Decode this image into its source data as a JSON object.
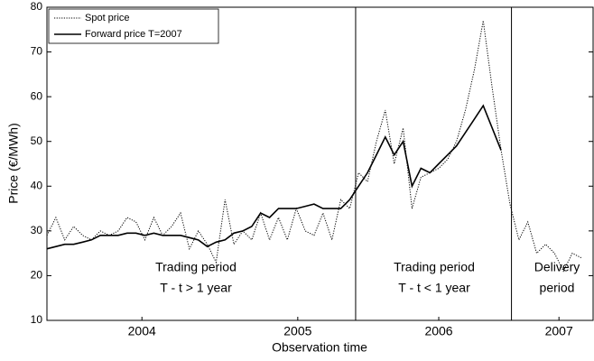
{
  "chart_data": {
    "type": "line",
    "xlabel": "Observation time",
    "ylabel": "Price (€/MWh)",
    "xlim": [
      2003.86,
      2007.54
    ],
    "ylim": [
      10,
      80
    ],
    "yticks": [
      10,
      20,
      30,
      40,
      50,
      60,
      70,
      80
    ],
    "xticks": [
      {
        "value": 2004.5,
        "label": "2004"
      },
      {
        "value": 2005.55,
        "label": "2005"
      },
      {
        "value": 2006.5,
        "label": "2006"
      },
      {
        "value": 2007.31,
        "label": "2007"
      }
    ],
    "legend": "upper left",
    "dividers": [
      2005.94,
      2006.99
    ],
    "annotations": [
      [
        "Trading period",
        "T - t > 1 year"
      ],
      [
        "Trading period",
        "T - t < 1 year"
      ],
      [
        "Delivery",
        "period"
      ]
    ],
    "x": [
      2003.86,
      2003.92,
      2003.98,
      2004.04,
      2004.1,
      2004.16,
      2004.22,
      2004.28,
      2004.34,
      2004.4,
      2004.46,
      2004.52,
      2004.58,
      2004.64,
      2004.7,
      2004.76,
      2004.82,
      2004.88,
      2004.94,
      2005.0,
      2005.06,
      2005.12,
      2005.18,
      2005.24,
      2005.3,
      2005.36,
      2005.42,
      2005.48,
      2005.54,
      2005.6,
      2005.66,
      2005.72,
      2005.78,
      2005.84,
      2005.9,
      2005.96,
      2006.02,
      2006.08,
      2006.14,
      2006.2,
      2006.26,
      2006.32,
      2006.38,
      2006.44,
      2006.5,
      2006.56,
      2006.62,
      2006.68,
      2006.74,
      2006.8,
      2006.86,
      2006.92,
      2006.98,
      2007.04,
      2007.1,
      2007.16,
      2007.22,
      2007.28,
      2007.34,
      2007.4,
      2007.46
    ],
    "series": [
      {
        "name": "Spot price",
        "color": "#000000",
        "style": "dotted",
        "values": [
          29,
          33,
          28,
          31,
          29,
          28,
          30,
          29,
          30,
          33,
          32,
          28,
          33,
          29,
          31,
          34,
          26,
          30,
          27,
          23,
          37,
          27,
          30,
          28,
          34,
          28,
          33,
          28,
          35,
          30,
          29,
          34,
          28,
          37,
          35,
          43,
          41,
          50,
          57,
          45,
          53,
          35,
          42,
          43,
          44,
          46,
          50,
          57,
          66,
          77,
          62,
          48,
          36,
          28,
          32,
          25,
          27,
          25,
          21,
          25,
          24
        ]
      },
      {
        "name": "Forward price T=2007",
        "color": "#000000",
        "style": "solid",
        "values": [
          26,
          26.5,
          27,
          27,
          27.5,
          28,
          29,
          29,
          29,
          29.5,
          29.5,
          29,
          29.5,
          29,
          29,
          29,
          28.5,
          28,
          26.5,
          27.5,
          28,
          29.5,
          30,
          31,
          34,
          33,
          35,
          35,
          35,
          35.5,
          36,
          35,
          35,
          35,
          37,
          40,
          43,
          47,
          51,
          47,
          50,
          40,
          44,
          43,
          45,
          47,
          49,
          52,
          55,
          58,
          53,
          48,
          null,
          null,
          null,
          null,
          null,
          null,
          null,
          null,
          null
        ]
      }
    ]
  }
}
